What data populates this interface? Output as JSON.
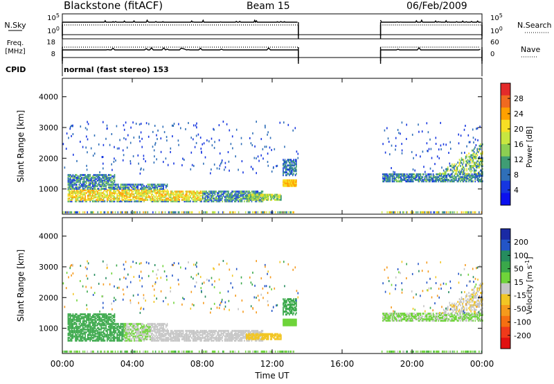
{
  "header": {
    "station": "Blackstone (fitACF)",
    "beam": "Beam 15",
    "date": "06/Feb/2009",
    "mode": "normal (fast stereo) 153"
  },
  "panels": {
    "nsky": {
      "label": "N.Sky",
      "ticks": [
        "10^5",
        "10^0"
      ],
      "right_label": "N.Search",
      "right_ticks": [
        "10^5",
        "10^0"
      ]
    },
    "freq": {
      "label_top": "Freq.",
      "label_unit": "[MHz]",
      "ticks": [
        "18",
        "8"
      ],
      "right_label": "Nave",
      "right_ticks": [
        "60",
        "0"
      ]
    },
    "cpid": {
      "label": "CPID"
    }
  },
  "x_ticks": [
    "00:00",
    "04:00",
    "08:00",
    "12:00",
    "16:00",
    "20:00",
    "00:00"
  ],
  "xlabel": "Time UT",
  "power_colorbar": {
    "label": "Power [dB]",
    "ticks": [
      "28",
      "24",
      "20",
      "16",
      "12",
      "8",
      "4"
    ],
    "colors": [
      "#e32a2a",
      "#f06a20",
      "#ffa000",
      "#f7df24",
      "#c8e640",
      "#8ccf52",
      "#3f9d74",
      "#2f6fb8",
      "#1636e0",
      "#0b10ee"
    ]
  },
  "velocity_colorbar": {
    "label": "Velocity [m s^-1]",
    "ticks": [
      "200",
      "100",
      "50",
      "15",
      "-15",
      "-50",
      "-100",
      "-200"
    ],
    "colors": [
      "#1a2aa5",
      "#2355c7",
      "#258c5e",
      "#3aa84a",
      "#6fd43a",
      "#c5c5c5",
      "#f2c624",
      "#f59a1c",
      "#f56f12",
      "#ef3a1a",
      "#e01010"
    ]
  },
  "chart_data": [
    {
      "type": "heatmap",
      "title": "Power",
      "xlabel": "Time UT",
      "ylabel": "Slant Range [km]",
      "y_ticks": [
        1000,
        2000,
        3000,
        4000
      ],
      "ylim": [
        180,
        4600
      ],
      "xlim_hours": [
        0,
        24
      ],
      "data_gap_hours": [
        13.5,
        18.2
      ],
      "colorbar_label": "Power [dB]",
      "colorbar_range": [
        0,
        30
      ]
    },
    {
      "type": "heatmap",
      "title": "Velocity",
      "xlabel": "Time UT",
      "ylabel": "Slant Range [km]",
      "y_ticks": [
        1000,
        2000,
        3000,
        4000
      ],
      "ylim": [
        180,
        4600
      ],
      "xlim_hours": [
        0,
        24
      ],
      "data_gap_hours": [
        13.5,
        18.2
      ],
      "colorbar_label": "Velocity [m s^-1]",
      "colorbar_range": [
        -250,
        250
      ]
    }
  ]
}
